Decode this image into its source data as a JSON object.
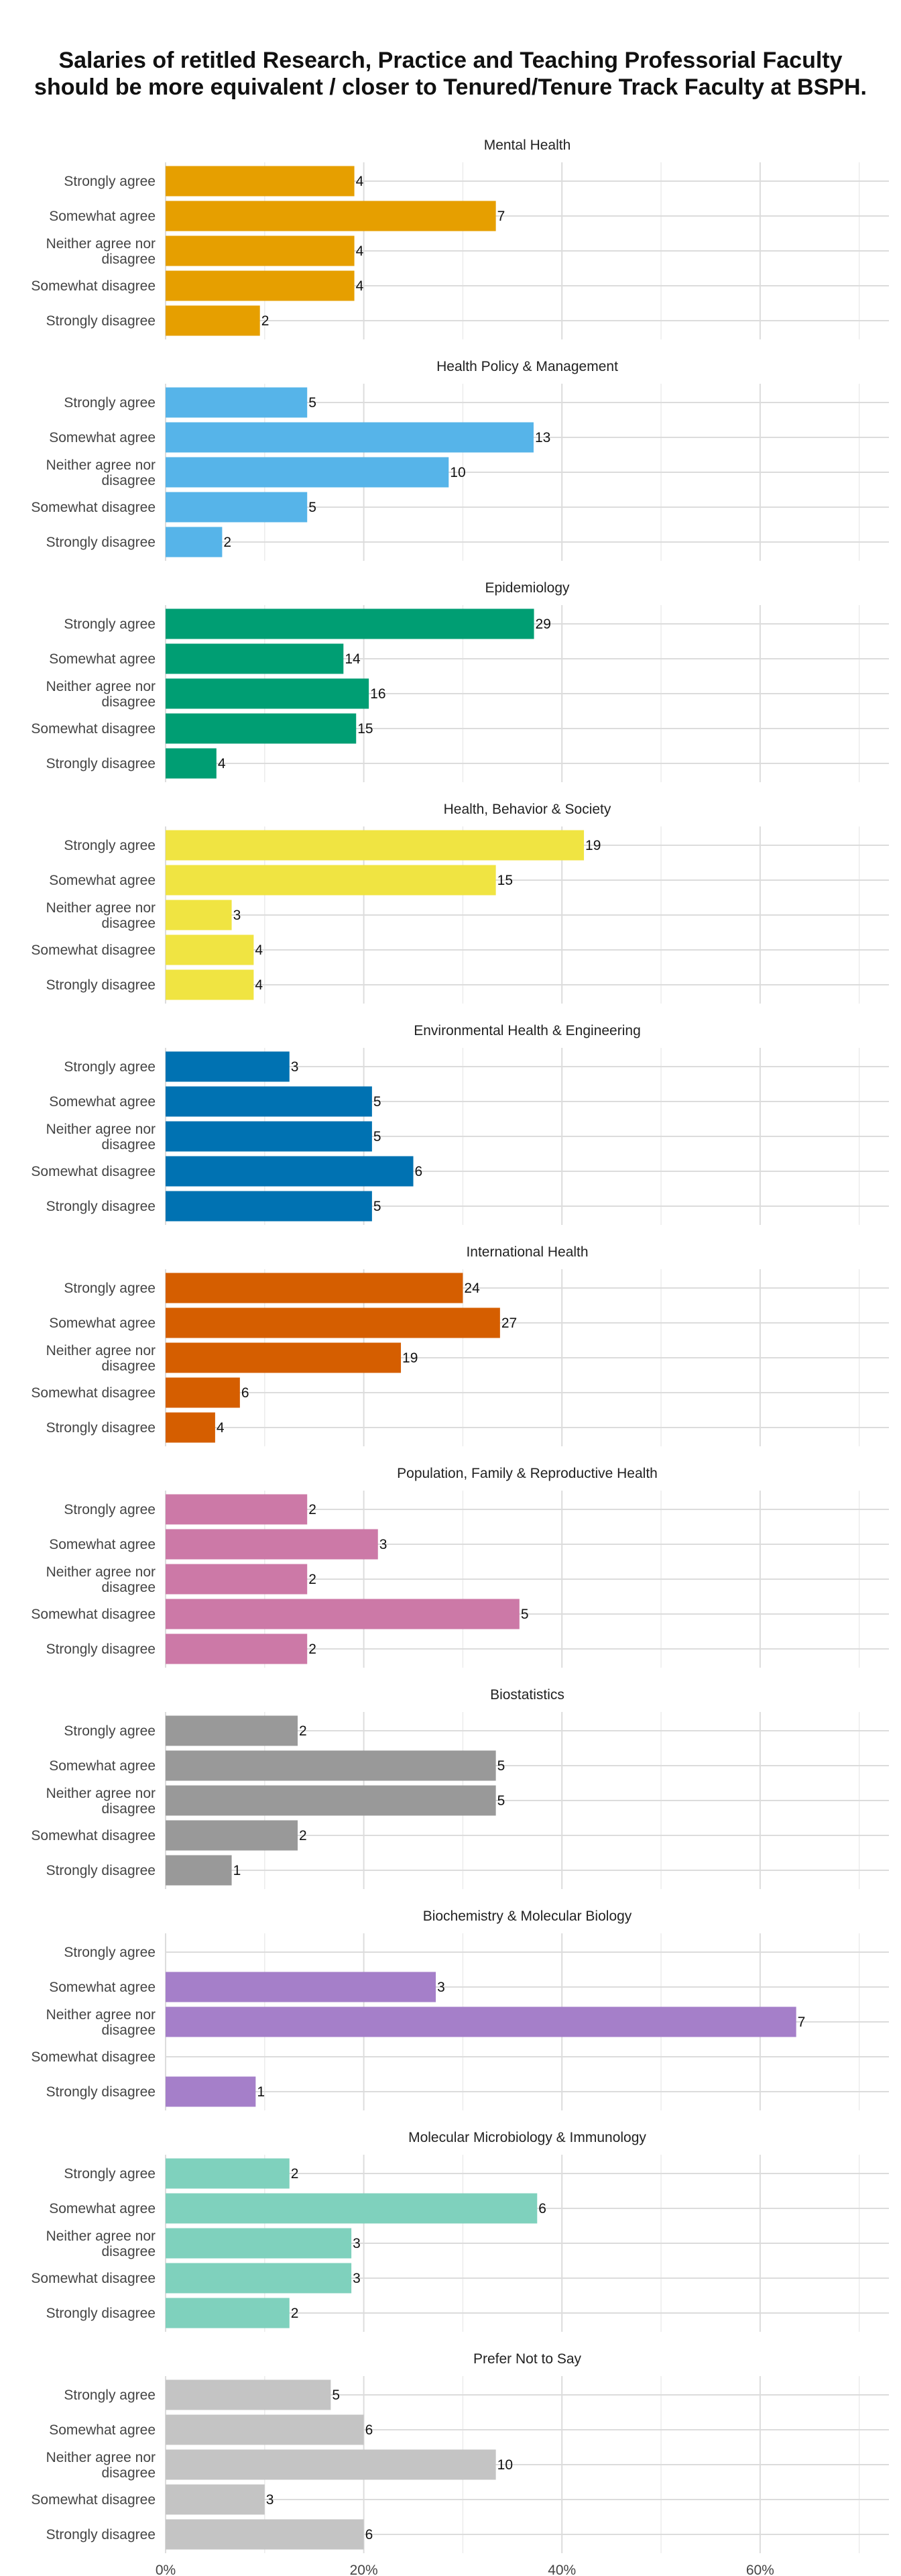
{
  "title_lines": [
    "Salaries of retitled Research, Practice and Teaching Professorial Faculty",
    "should be more equivalent / closer to Tenured/Tenure Track Faculty at BSPH."
  ],
  "chart_data": {
    "type": "bar",
    "orientation": "horizontal",
    "categories": [
      "Strongly agree",
      "Somewhat agree",
      "Neither agree nor disagree",
      "Somewhat disagree",
      "Strongly disagree"
    ],
    "x_axis": {
      "min": 0,
      "max": 0.73,
      "ticks": [
        0,
        0.2,
        0.4,
        0.6
      ],
      "tick_labels": [
        "0%",
        "20%",
        "40%",
        "60%"
      ]
    },
    "grid": true,
    "data_labels": "counts",
    "panels": [
      {
        "name": "Mental Health",
        "color": "#E69F00",
        "counts": [
          4,
          7,
          4,
          4,
          2
        ],
        "shares": [
          0.1905,
          0.3333,
          0.1905,
          0.1905,
          0.0952
        ]
      },
      {
        "name": "Health Policy & Management",
        "color": "#56B4E9",
        "counts": [
          5,
          13,
          10,
          5,
          2
        ],
        "shares": [
          0.1429,
          0.3714,
          0.2857,
          0.1429,
          0.0571
        ]
      },
      {
        "name": "Epidemiology",
        "color": "#009E73",
        "counts": [
          29,
          14,
          16,
          15,
          4
        ],
        "shares": [
          0.3718,
          0.1795,
          0.2051,
          0.1923,
          0.0513
        ]
      },
      {
        "name": "Health, Behavior & Society",
        "color": "#F0E442",
        "counts": [
          19,
          15,
          3,
          4,
          4
        ],
        "shares": [
          0.4222,
          0.3333,
          0.0667,
          0.0889,
          0.0889
        ]
      },
      {
        "name": "Environmental Health & Engineering",
        "color": "#0072B2",
        "counts": [
          3,
          5,
          5,
          6,
          5
        ],
        "shares": [
          0.125,
          0.2083,
          0.2083,
          0.25,
          0.2083
        ]
      },
      {
        "name": "International Health",
        "color": "#D55E00",
        "counts": [
          24,
          27,
          19,
          6,
          4
        ],
        "shares": [
          0.3,
          0.3375,
          0.2375,
          0.075,
          0.05
        ]
      },
      {
        "name": "Population, Family & Reproductive Health",
        "color": "#CC79A7",
        "counts": [
          2,
          3,
          2,
          5,
          2
        ],
        "shares": [
          0.1429,
          0.2143,
          0.1429,
          0.3571,
          0.1429
        ]
      },
      {
        "name": "Biostatistics",
        "color": "#999999",
        "counts": [
          2,
          5,
          5,
          2,
          1
        ],
        "shares": [
          0.1333,
          0.3333,
          0.3333,
          0.1333,
          0.0667
        ]
      },
      {
        "name": "Biochemistry & Molecular Biology",
        "color": "#A57FC9",
        "counts": [
          null,
          3,
          7,
          null,
          1
        ],
        "shares": [
          null,
          0.2727,
          0.6364,
          null,
          0.0909
        ]
      },
      {
        "name": "Molecular Microbiology & Immunology",
        "color": "#7FD1BD",
        "counts": [
          2,
          6,
          3,
          3,
          2
        ],
        "shares": [
          0.125,
          0.375,
          0.1875,
          0.1875,
          0.125
        ]
      },
      {
        "name": "Prefer Not to Say",
        "color": "#C4C4C4",
        "counts": [
          5,
          6,
          10,
          3,
          6
        ],
        "shares": [
          0.1667,
          0.2,
          0.3333,
          0.1,
          0.2
        ]
      }
    ]
  }
}
